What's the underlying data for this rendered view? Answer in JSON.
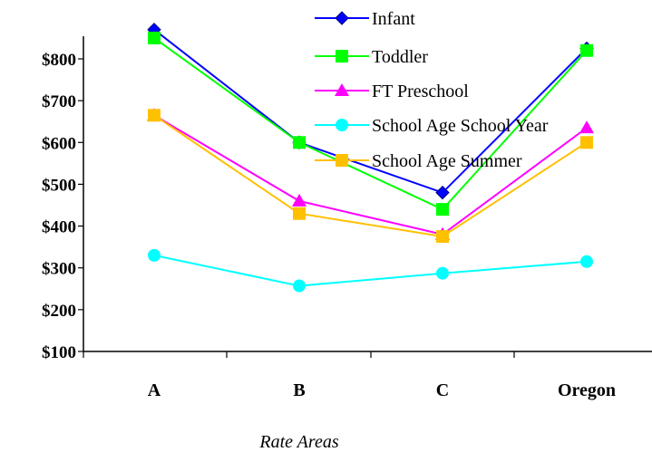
{
  "chart_data": {
    "type": "line",
    "title": "",
    "xlabel": "Rate Areas",
    "ylabel": "",
    "categories": [
      "A",
      "B",
      "C",
      "Oregon"
    ],
    "ylim": [
      100,
      800
    ],
    "yticks": [
      "$100",
      "$200",
      "$300",
      "$400",
      "$500",
      "$600",
      "$700",
      "$800"
    ],
    "ytick_values": [
      100,
      200,
      300,
      400,
      500,
      600,
      700,
      800
    ],
    "grid": false,
    "legend_position": "top-right",
    "series": [
      {
        "name": "Infant",
        "values": [
          870,
          600,
          480,
          825
        ],
        "color": "#0000ff",
        "marker": "diamond"
      },
      {
        "name": "Toddler",
        "values": [
          850,
          600,
          440,
          820
        ],
        "color": "#00ff00",
        "marker": "square"
      },
      {
        "name": "FT Preschool",
        "values": [
          665,
          460,
          380,
          635
        ],
        "color": "#ff00ff",
        "marker": "triangle"
      },
      {
        "name": "School Age School Year",
        "values": [
          330,
          257,
          287,
          315
        ],
        "color": "#00ffff",
        "marker": "circle"
      },
      {
        "name": "School Age Summer",
        "values": [
          665,
          430,
          375,
          600
        ],
        "color": "#ffc000",
        "marker": "square"
      }
    ]
  }
}
